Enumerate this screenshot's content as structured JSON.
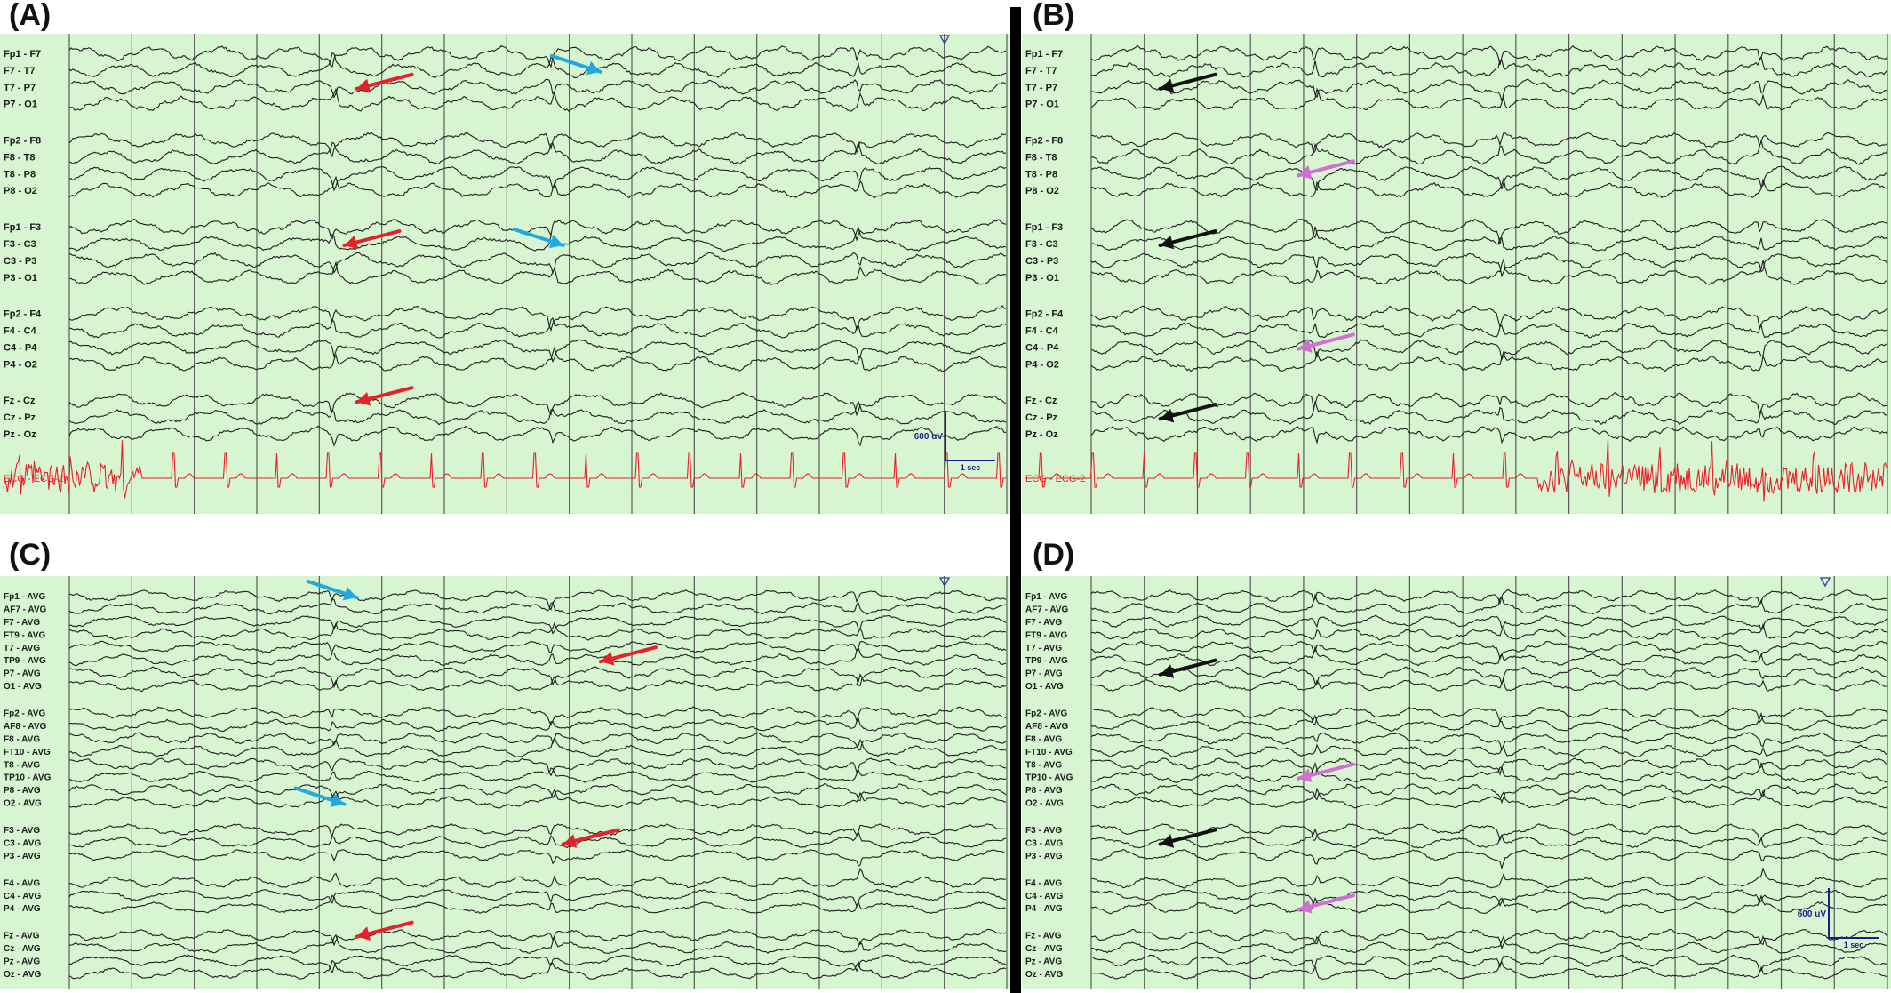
{
  "panels": [
    {
      "id": "A",
      "label": "(A)",
      "montage": "bipolar",
      "channels": [
        "Fp1 - F7",
        "F7 - T7",
        "T7 - P7",
        "P7 - O1",
        "Fp2 - F8",
        "F8 - T8",
        "T8 - P8",
        "P8 - O2",
        "Fp1 - F3",
        "F3 - C3",
        "C3 - P3",
        "P3 - O1",
        "Fp2 - F4",
        "F4 - C4",
        "C4 - P4",
        "P4 - O2",
        "Fz - Cz",
        "Cz - Pz",
        "Pz - Oz"
      ],
      "groups": [
        4,
        4,
        4,
        4,
        3
      ],
      "ecg_label": "ECG - ECG-2",
      "scale": {
        "amplitude": "600 uV",
        "time": "1 sec"
      },
      "marker": true,
      "arrows": [
        {
          "color": "red",
          "channel": "T7 - P7"
        },
        {
          "color": "blue",
          "channel": "F7 - T7"
        },
        {
          "color": "red",
          "channel": "F3 - C3"
        },
        {
          "color": "blue",
          "channel": "F3 - C3"
        },
        {
          "color": "red",
          "channel": "Fz - Cz"
        }
      ]
    },
    {
      "id": "B",
      "label": "(B)",
      "montage": "bipolar",
      "channels": [
        "Fp1 - F7",
        "F7 - T7",
        "T7 - P7",
        "P7 - O1",
        "Fp2 - F8",
        "F8 - T8",
        "T8 - P8",
        "P8 - O2",
        "Fp1 - F3",
        "F3 - C3",
        "C3 - P3",
        "P3 - O1",
        "Fp2 - F4",
        "F4 - C4",
        "C4 - P4",
        "P4 - O2",
        "Fz - Cz",
        "Cz - Pz",
        "Pz - Oz"
      ],
      "groups": [
        4,
        4,
        4,
        4,
        3
      ],
      "ecg_label": "ECG - ECG-2",
      "marker": false,
      "arrows": [
        {
          "color": "black",
          "channel": "T7 - P7"
        },
        {
          "color": "violet",
          "channel": "T8 - P8"
        },
        {
          "color": "black",
          "channel": "F3 - C3"
        },
        {
          "color": "violet",
          "channel": "C4 - P4"
        },
        {
          "color": "black",
          "channel": "Cz - Pz"
        }
      ]
    },
    {
      "id": "C",
      "label": "(C)",
      "montage": "average",
      "channels": [
        "Fp1 - AVG",
        "AF7 - AVG",
        "F7 - AVG",
        "FT9 - AVG",
        "T7 - AVG",
        "TP9 - AVG",
        "P7 - AVG",
        "O1 - AVG",
        "Fp2 - AVG",
        "AF8 - AVG",
        "F8 - AVG",
        "FT10 - AVG",
        "T8 - AVG",
        "TP10 - AVG",
        "P8 - AVG",
        "O2 - AVG",
        "F3 - AVG",
        "C3 - AVG",
        "P3 - AVG",
        "F4 - AVG",
        "C4 - AVG",
        "P4 - AVG",
        "Fz - AVG",
        "Cz - AVG",
        "Pz - AVG",
        "Oz - AVG"
      ],
      "groups": [
        8,
        8,
        3,
        3,
        4
      ],
      "marker": true,
      "arrows": [
        {
          "color": "blue",
          "channel": "Fp1 - AVG"
        },
        {
          "color": "red",
          "channel": "TP9 - AVG"
        },
        {
          "color": "blue",
          "channel": "O2 - AVG"
        },
        {
          "color": "red",
          "channel": "C3 - AVG"
        },
        {
          "color": "red",
          "channel": "Fz - AVG"
        }
      ]
    },
    {
      "id": "D",
      "label": "(D)",
      "montage": "average",
      "channels": [
        "Fp1 - AVG",
        "AF7 - AVG",
        "F7 - AVG",
        "FT9 - AVG",
        "T7 - AVG",
        "TP9 - AVG",
        "P7 - AVG",
        "O1 - AVG",
        "Fp2 - AVG",
        "AF8 - AVG",
        "F8 - AVG",
        "FT10 - AVG",
        "T8 - AVG",
        "TP10 - AVG",
        "P8 - AVG",
        "O2 - AVG",
        "F3 - AVG",
        "C3 - AVG",
        "P3 - AVG",
        "F4 - AVG",
        "C4 - AVG",
        "P4 - AVG",
        "Fz - AVG",
        "Cz - AVG",
        "Pz - AVG",
        "Oz - AVG"
      ],
      "groups": [
        8,
        8,
        3,
        3,
        4
      ],
      "scale": {
        "amplitude": "600 uV",
        "time": "1 sec"
      },
      "marker": true,
      "arrows": [
        {
          "color": "black",
          "channel": "P7 - AVG"
        },
        {
          "color": "violet",
          "channel": "TP10 - AVG"
        },
        {
          "color": "black",
          "channel": "C3 - AVG"
        },
        {
          "color": "violet",
          "channel": "P4 - AVG"
        }
      ]
    }
  ],
  "colors": {
    "background": "#d6f5d0",
    "trace": "#1f1f1f",
    "ecg": "#e8202a",
    "grid": "#5a5a5a",
    "label": "#1a1a1a",
    "scale": "#1c1c8c",
    "arrow_red": "#e8202a",
    "arrow_blue": "#22a8e0",
    "arrow_black": "#111111",
    "arrow_violet": "#d070d0"
  },
  "chart_data": {
    "type": "line",
    "x_unit": "sec",
    "seconds_per_panel": 15,
    "scale_bar": {
      "amplitude": "600 uV",
      "time": "1 sec"
    }
  }
}
